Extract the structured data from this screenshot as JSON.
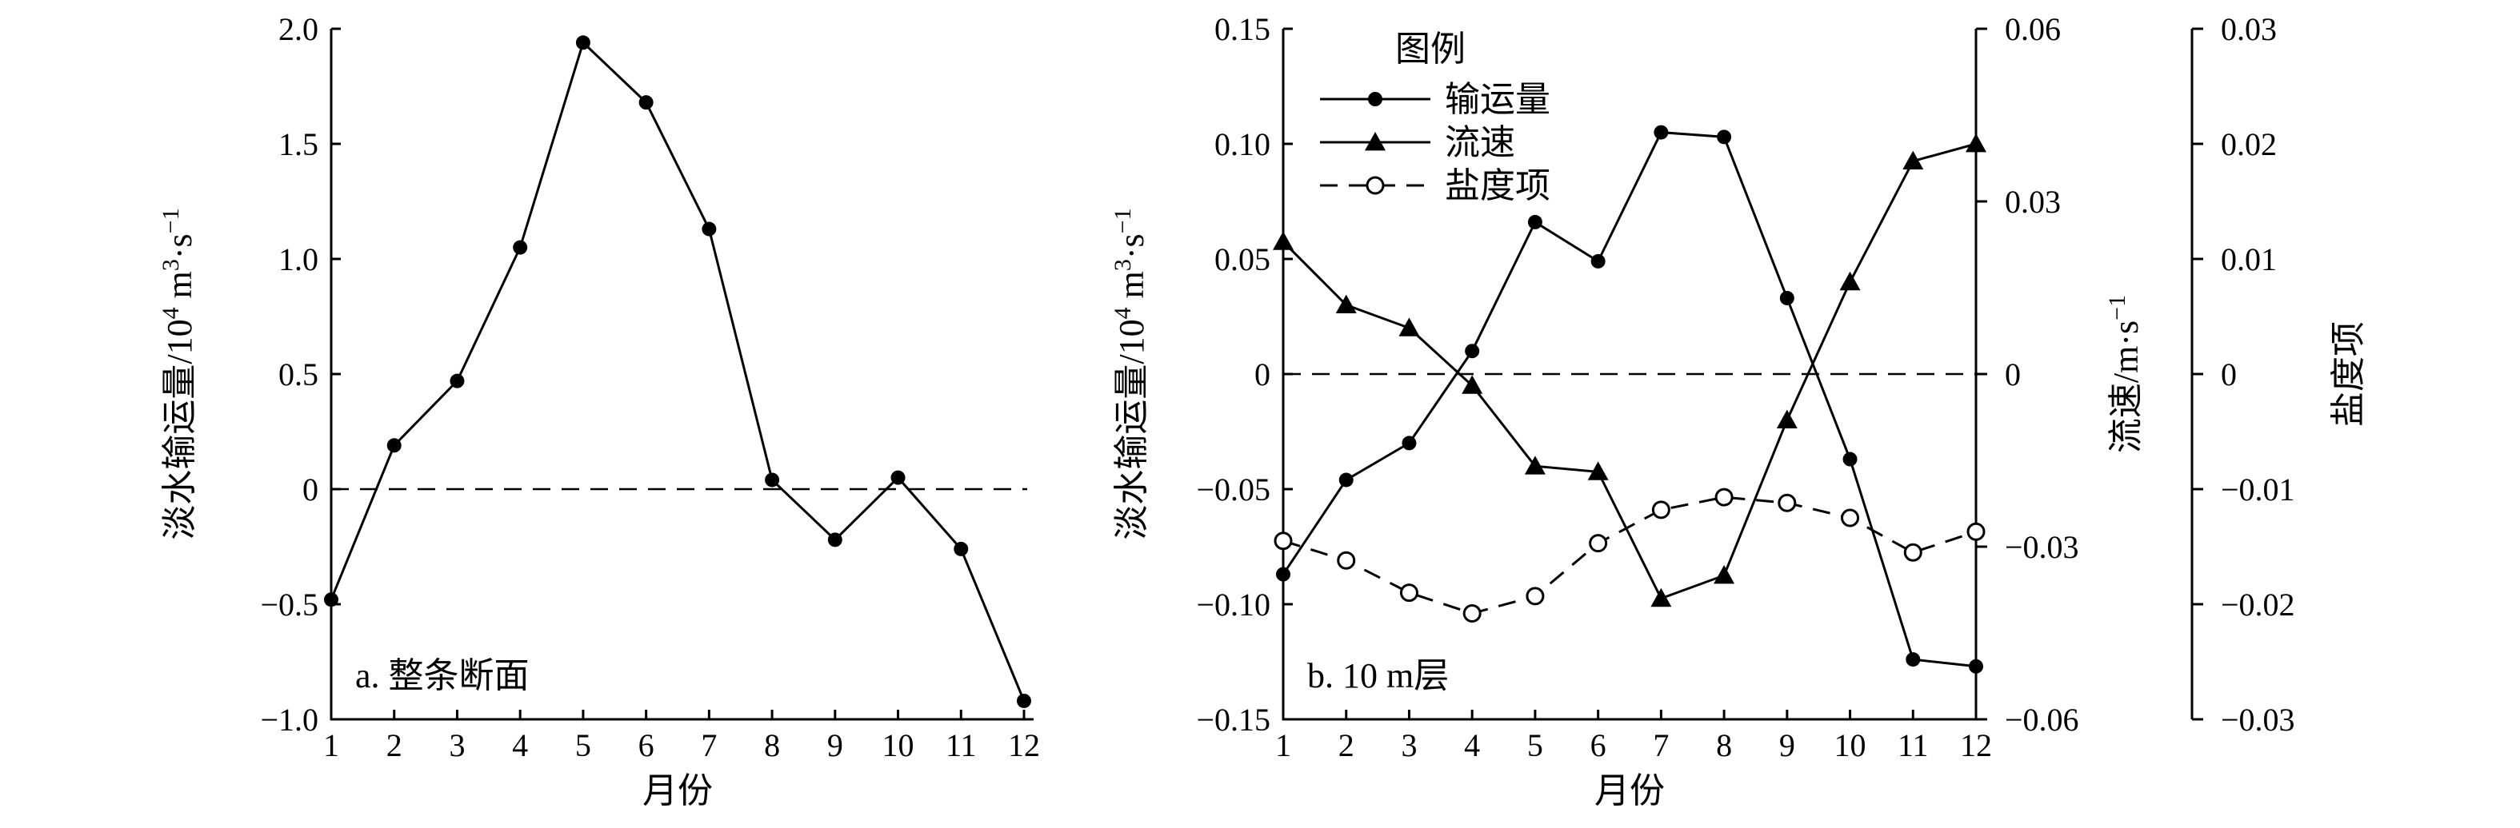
{
  "chart_data": [
    {
      "type": "line",
      "panel_label": "a. 整条断面",
      "xlabel": "月份",
      "ylabel": "淡水输运量/10⁴ m³·s⁻¹",
      "x": [
        1,
        2,
        3,
        4,
        5,
        6,
        7,
        8,
        9,
        10,
        11,
        12
      ],
      "xlim": [
        1,
        12
      ],
      "ylim": [
        -1.0,
        2.0
      ],
      "xticks": [
        1,
        2,
        3,
        4,
        5,
        6,
        7,
        8,
        9,
        10,
        11,
        12
      ],
      "yticks": [
        {
          "value": 2.0,
          "label": "2.0"
        },
        {
          "value": 1.5,
          "label": "1.5"
        },
        {
          "value": 1.0,
          "label": "1.0"
        },
        {
          "value": 0.5,
          "label": "0.5"
        },
        {
          "value": 0,
          "label": "0"
        },
        {
          "value": -0.5,
          "label": "−0.5"
        },
        {
          "value": -1.0,
          "label": "−1.0"
        }
      ],
      "series": [
        {
          "values": [
            -0.48,
            0.19,
            0.47,
            1.05,
            1.94,
            1.68,
            1.13,
            0.04,
            -0.22,
            0.05,
            -0.26,
            -0.92
          ],
          "marker": "filled-circle",
          "style": "solid"
        }
      ],
      "reference_line": {
        "y": 0,
        "style": "dashed"
      },
      "grid": false
    },
    {
      "type": "line",
      "panel_label": "b. 10 m层",
      "xlabel": "月份",
      "ylabel": "淡水输运量/10⁴ m³·s⁻¹",
      "y2label": "流速/m·s⁻¹",
      "y3label": "盐度项",
      "legend_title": "图例",
      "legend_position": "top-left",
      "x": [
        1,
        2,
        3,
        4,
        5,
        6,
        7,
        8,
        9,
        10,
        11,
        12
      ],
      "xlim": [
        1,
        12
      ],
      "ylim": [
        -0.15,
        0.15
      ],
      "y2lim": [
        -0.06,
        0.06
      ],
      "y3lim": [
        -0.03,
        0.03
      ],
      "xticks": [
        1,
        2,
        3,
        4,
        5,
        6,
        7,
        8,
        9,
        10,
        11,
        12
      ],
      "yticks": [
        {
          "value": 0.15,
          "label": "0.15"
        },
        {
          "value": 0.1,
          "label": "0.10"
        },
        {
          "value": 0.05,
          "label": "0.05"
        },
        {
          "value": 0,
          "label": "0"
        },
        {
          "value": -0.05,
          "label": "−0.05"
        },
        {
          "value": -0.1,
          "label": "−0.10"
        },
        {
          "value": -0.15,
          "label": "−0.15"
        }
      ],
      "y2ticks": [
        {
          "value": 0.06,
          "label": "0.06"
        },
        {
          "value": 0.03,
          "label": "0.03"
        },
        {
          "value": 0,
          "label": "0"
        },
        {
          "value": -0.03,
          "label": "−0.03"
        },
        {
          "value": -0.06,
          "label": "−0.06"
        }
      ],
      "y3ticks": [
        {
          "value": 0.03,
          "label": "0.03"
        },
        {
          "value": 0.02,
          "label": "0.02"
        },
        {
          "value": 0.01,
          "label": "0.01"
        },
        {
          "value": 0,
          "label": "0"
        },
        {
          "value": -0.01,
          "label": "−0.01"
        },
        {
          "value": -0.02,
          "label": "−0.02"
        },
        {
          "value": -0.03,
          "label": "−0.03"
        }
      ],
      "series": [
        {
          "name": "输运量",
          "axis": "y",
          "values": [
            -0.087,
            -0.046,
            -0.03,
            0.01,
            0.066,
            0.049,
            0.105,
            0.103,
            0.033,
            -0.037,
            -0.124,
            -0.127
          ],
          "marker": "filled-circle",
          "style": "solid"
        },
        {
          "name": "流速",
          "axis": "y2",
          "values": [
            0.023,
            0.012,
            0.008,
            -0.002,
            -0.016,
            -0.017,
            -0.039,
            -0.035,
            -0.008,
            0.016,
            0.037,
            0.04
          ],
          "marker": "filled-triangle",
          "style": "solid"
        },
        {
          "name": "盐度项",
          "axis": "y3",
          "values": [
            -0.0145,
            -0.0162,
            -0.019,
            -0.0208,
            -0.0193,
            -0.0147,
            -0.0118,
            -0.0107,
            -0.0112,
            -0.0125,
            -0.0155,
            -0.0137
          ],
          "marker": "open-circle",
          "style": "dashed"
        }
      ],
      "reference_line": {
        "y": 0,
        "style": "dashed"
      },
      "grid": false
    }
  ]
}
